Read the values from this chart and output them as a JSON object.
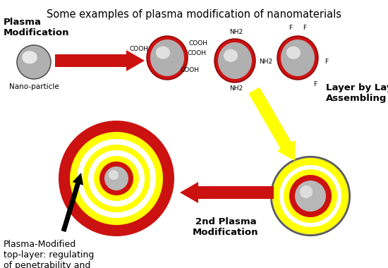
{
  "title": "Some examples of plasma modification of nanomaterials",
  "bg_color": "#ffffff",
  "title_fontsize": 10.5,
  "label_fontsize": 9,
  "small_fontsize": 7,
  "nano_particle_label": "Nano-particle",
  "plasma_mod_label": "Plasma\nModification",
  "layer_by_layer_label": "Layer by Layer\nAssembling",
  "second_plasma_label": "2nd Plasma\nModification",
  "bottom_label": "Plasma-Modified\ntop-layer: regulating\nof penetrability and\nsinterability",
  "red_color": "#cc1111",
  "yellow_color": "#ffff00",
  "white_color": "#ffffff",
  "black": "#000000"
}
